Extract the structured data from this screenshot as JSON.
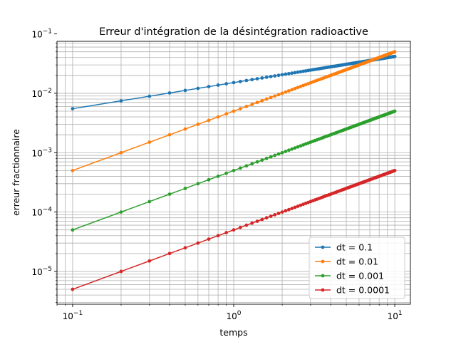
{
  "chart_data": {
    "type": "line",
    "title": "Erreur d'intégration de la désintégration radioactive",
    "xlabel": "temps",
    "ylabel": "erreur fractionnaire",
    "xscale": "log",
    "yscale": "log",
    "xlim": [
      0.08,
      12.5
    ],
    "ylim": [
      2.8e-06,
      0.075
    ],
    "grid": "on (major and minor)",
    "legend_position": "bottom-right",
    "x": {
      "start": 0.1,
      "stop": 10.0,
      "step": 0.1
    },
    "x_ticks": [
      {
        "value": 0.1,
        "base": "10",
        "exp": "−1"
      },
      {
        "value": 1,
        "base": "10",
        "exp": "0"
      },
      {
        "value": 10,
        "base": "10",
        "exp": "1"
      }
    ],
    "y_ticks": [
      {
        "value": 1e-05,
        "base": "10",
        "exp": "−5"
      },
      {
        "value": 0.0001,
        "base": "10",
        "exp": "−4"
      },
      {
        "value": 0.001,
        "base": "10",
        "exp": "−3"
      },
      {
        "value": 0.01,
        "base": "10",
        "exp": "−2"
      },
      {
        "value": 0.1,
        "base": "10",
        "exp": "−1"
      }
    ],
    "series": [
      {
        "name": "dt = 0.1",
        "color": "#1f77b4",
        "y_at_x1": 0.0055,
        "y_at_x100": 0.042,
        "slope_loglog": 0.44
      },
      {
        "name": "dt = 0.01",
        "color": "#ff7f0e",
        "y_at_x1": 0.0005,
        "y_at_x100": 0.05,
        "slope_loglog": 1.0
      },
      {
        "name": "dt = 0.001",
        "color": "#2ca02c",
        "y_at_x1": 5e-05,
        "y_at_x100": 0.005,
        "slope_loglog": 1.0
      },
      {
        "name": "dt = 0.0001",
        "color": "#d62728",
        "y_at_x1": 5e-06,
        "y_at_x100": 0.0005,
        "slope_loglog": 1.0
      }
    ]
  }
}
